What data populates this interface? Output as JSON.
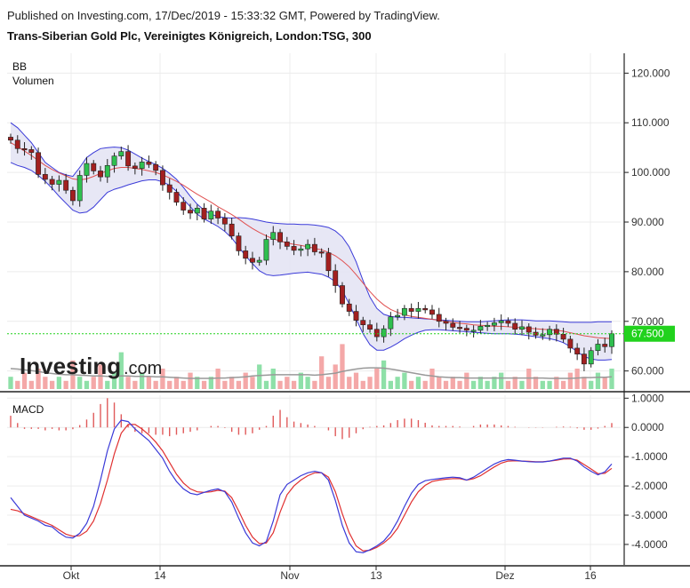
{
  "header": {
    "published": "Published on Investing.com, 17/Dec/2019 - 15:33:32 GMT, Powered by TradingView.",
    "instrument": "Trans-Siberian Gold Plc, Vereinigtes Königreich, London:TSG, 300"
  },
  "logo": {
    "main": "Investing",
    "suffix": ".com"
  },
  "colors": {
    "up": "#2fbf4f",
    "down": "#a32020",
    "bb_band": "#3a3ad8",
    "bb_fill": "#e4e4f4",
    "bb_mid": "#e05050",
    "macd": "#3a3ad8",
    "signal": "#e03030",
    "hist": "#e05a5a",
    "vol_up": "#8ee0a8",
    "vol_down": "#f4a8a8",
    "vol_ma": "#999999",
    "price_tag": "#21d21d"
  },
  "chart_data": [
    {
      "type": "candlestick",
      "pane": "price",
      "indicators": [
        "BB",
        "Volumen"
      ],
      "ylim": [
        56000,
        124000
      ],
      "yticks": [
        "120.000",
        "110.000",
        "100.000",
        "90.000",
        "80.000",
        "70.000",
        "60.000"
      ],
      "ytick_values": [
        120000,
        110000,
        100000,
        90000,
        80000,
        70000,
        60000
      ],
      "xticks": [
        "Okt",
        "14",
        "Nov",
        "13",
        "Dez",
        "16"
      ],
      "last_price": 67500,
      "last_price_label": "67.500",
      "close": [
        106500,
        104800,
        104600,
        104000,
        99600,
        98600,
        97600,
        98400,
        96400,
        94300,
        99400,
        101800,
        100300,
        99100,
        101400,
        103300,
        104200,
        101300,
        100800,
        102100,
        101600,
        100400,
        97500,
        96000,
        94000,
        92400,
        91800,
        92800,
        90600,
        92200,
        90800,
        89600,
        87200,
        84200,
        82700,
        81900,
        82300,
        86500,
        87900,
        86000,
        85100,
        84300,
        84600,
        85500,
        84000,
        83800,
        80200,
        77200,
        73500,
        72000,
        70200,
        69300,
        68400,
        66900,
        68500,
        70900,
        71200,
        72600,
        72000,
        72600,
        72300,
        71400,
        70000,
        69600,
        68800,
        68600,
        68200,
        68200,
        69000,
        69200,
        69700,
        70100,
        69600,
        68400,
        68900,
        67800,
        67200,
        67300,
        68400,
        67400,
        66400,
        64600,
        63400,
        61400,
        64100,
        65400,
        64900,
        67500
      ],
      "bb_upper": [
        110000,
        109000,
        107500,
        106000,
        104000,
        102000,
        101000,
        100000,
        99500,
        99200,
        101000,
        103000,
        104000,
        104800,
        105000,
        105100,
        105000,
        104500,
        103700,
        102900,
        102200,
        101600,
        100800,
        99800,
        98600,
        97000,
        95200,
        93600,
        92400,
        91600,
        91100,
        90900,
        90800,
        90900,
        90800,
        90600,
        90300,
        90000,
        89800,
        89700,
        89600,
        89600,
        89500,
        89500,
        89400,
        89200,
        88900,
        88200,
        87000,
        85000,
        82000,
        78200,
        74900,
        72600,
        71400,
        71000,
        70800,
        70800,
        70700,
        70600,
        70500,
        70400,
        70300,
        70200,
        70100,
        70000,
        69900,
        69900,
        69900,
        70000,
        70100,
        70200,
        70300,
        70300,
        70300,
        70200,
        70100,
        70100,
        70100,
        70000,
        69900,
        69800,
        69800,
        69800,
        69800,
        69900,
        69900,
        69900
      ],
      "bb_mid": [
        106000,
        105200,
        104300,
        103400,
        102400,
        101400,
        100600,
        99900,
        99300,
        98700,
        98500,
        98700,
        99200,
        99800,
        100300,
        100800,
        101000,
        101000,
        100800,
        100600,
        100300,
        100000,
        99500,
        98900,
        98200,
        97400,
        96500,
        95600,
        94800,
        94000,
        93100,
        92300,
        91500,
        90600,
        89600,
        88700,
        87900,
        87200,
        86600,
        86200,
        85800,
        85500,
        85300,
        85000,
        84700,
        84400,
        83900,
        83200,
        82200,
        81000,
        79400,
        77700,
        76000,
        74500,
        73300,
        72400,
        71800,
        71300,
        71000,
        70800,
        70600,
        70400,
        70200,
        70000,
        69800,
        69600,
        69500,
        69300,
        69200,
        69100,
        69000,
        69000,
        68900,
        68800,
        68700,
        68600,
        68500,
        68400,
        68300,
        68200,
        68000,
        67700,
        67400,
        67100,
        66900,
        66700,
        66600,
        66500
      ],
      "bb_lower": [
        102000,
        101400,
        101000,
        100400,
        99400,
        98200,
        96800,
        95200,
        93800,
        92400,
        91800,
        92000,
        93000,
        94500,
        96000,
        96600,
        97000,
        97500,
        97900,
        98300,
        98500,
        98500,
        98100,
        97400,
        96200,
        94600,
        93100,
        91600,
        90600,
        89900,
        89100,
        88100,
        86800,
        85000,
        83200,
        81600,
        80200,
        79400,
        79200,
        79300,
        79500,
        79700,
        79800,
        79900,
        79700,
        79500,
        78900,
        78000,
        76200,
        73500,
        70500,
        67500,
        65300,
        64200,
        64200,
        64800,
        65600,
        66500,
        67200,
        67800,
        68200,
        68300,
        68300,
        68200,
        68100,
        68000,
        67900,
        67800,
        67700,
        67600,
        67500,
        67500,
        67500,
        67400,
        67300,
        67100,
        66900,
        66700,
        66500,
        66200,
        65700,
        64900,
        63900,
        62900,
        62400,
        62200,
        62200,
        62300
      ],
      "volume": [
        3,
        2,
        4,
        2,
        5,
        3,
        2,
        3,
        2,
        7,
        3,
        2,
        3,
        6,
        2,
        4,
        9,
        3,
        2,
        4,
        3,
        2,
        5,
        2,
        3,
        2,
        4,
        3,
        2,
        3,
        5,
        2,
        3,
        2,
        4,
        3,
        6,
        2,
        5,
        2,
        3,
        2,
        4,
        3,
        2,
        8,
        3,
        6,
        11,
        3,
        4,
        2,
        3,
        5,
        7,
        2,
        3,
        4,
        2,
        3,
        2,
        5,
        3,
        2,
        3,
        2,
        4,
        2,
        3,
        2,
        3,
        4,
        2,
        3,
        2,
        5,
        3,
        2,
        2,
        3,
        2,
        4,
        5,
        3,
        2,
        4,
        3,
        5
      ],
      "volume_ma": [
        5,
        4.9,
        4.7,
        4.5,
        4.3,
        4,
        3.8,
        3.6,
        3.5,
        3.5,
        3.4,
        3.3,
        3.2,
        3.2,
        3.1,
        3.1,
        3.2,
        3.2,
        3.1,
        3.1,
        3.1,
        3,
        3,
        2.9,
        2.8,
        2.7,
        2.6,
        2.6,
        2.6,
        2.6,
        2.7,
        2.7,
        2.8,
        2.9,
        3,
        3.2,
        3.3,
        3.4,
        3.5,
        3.5,
        3.5,
        3.5,
        3.5,
        3.5,
        3.4,
        3.5,
        3.7,
        3.9,
        4.3,
        4.6,
        4.9,
        5.1,
        5.2,
        5.2,
        5.1,
        4.9,
        4.6,
        4.3,
        4,
        3.7,
        3.4,
        3.2,
        3,
        2.9,
        2.8,
        2.8,
        2.7,
        2.7,
        2.7,
        2.7,
        2.7,
        2.7,
        2.7,
        2.7,
        2.7,
        2.7,
        2.7,
        2.7,
        2.6,
        2.6,
        2.6,
        2.6,
        2.7,
        2.8,
        2.8,
        2.9,
        2.9,
        3
      ]
    },
    {
      "type": "line",
      "pane": "MACD",
      "label": "MACD",
      "ylim": [
        -4.7,
        1.1
      ],
      "yticks": [
        "1.0000",
        "0.0000",
        "-1.0000",
        "-2.0000",
        "-3.0000",
        "-4.0000"
      ],
      "ytick_values": [
        1,
        0,
        -1,
        -2,
        -3,
        -4
      ],
      "series": [
        {
          "name": "MACD",
          "values": [
            -2.4,
            -2.7,
            -3,
            -3.1,
            -3.2,
            -3.35,
            -3.4,
            -3.6,
            -3.75,
            -3.78,
            -3.62,
            -3.28,
            -2.7,
            -1.8,
            -0.8,
            -0.05,
            0.25,
            0.2,
            -0.05,
            -0.25,
            -0.45,
            -0.75,
            -1.05,
            -1.5,
            -1.85,
            -2.1,
            -2.25,
            -2.3,
            -2.22,
            -2.15,
            -2.1,
            -2.2,
            -2.55,
            -3.1,
            -3.6,
            -3.95,
            -4.05,
            -3.9,
            -3.2,
            -2.3,
            -1.95,
            -1.8,
            -1.65,
            -1.55,
            -1.5,
            -1.55,
            -1.8,
            -2.5,
            -3.35,
            -3.95,
            -4.25,
            -4.28,
            -4.18,
            -4.05,
            -3.88,
            -3.6,
            -3.2,
            -2.7,
            -2.25,
            -1.95,
            -1.82,
            -1.78,
            -1.75,
            -1.72,
            -1.7,
            -1.72,
            -1.8,
            -1.7,
            -1.55,
            -1.4,
            -1.25,
            -1.15,
            -1.1,
            -1.12,
            -1.15,
            -1.17,
            -1.18,
            -1.18,
            -1.15,
            -1.1,
            -1.05,
            -1.05,
            -1.15,
            -1.35,
            -1.5,
            -1.62,
            -1.52,
            -1.25
          ]
        },
        {
          "name": "Signal",
          "values": [
            -2.8,
            -2.85,
            -2.95,
            -3.05,
            -3.15,
            -3.25,
            -3.35,
            -3.5,
            -3.65,
            -3.72,
            -3.7,
            -3.55,
            -3.2,
            -2.6,
            -1.8,
            -0.9,
            -0.2,
            0.1,
            0.1,
            -0.05,
            -0.25,
            -0.5,
            -0.8,
            -1.2,
            -1.6,
            -1.9,
            -2.1,
            -2.2,
            -2.22,
            -2.2,
            -2.15,
            -2.18,
            -2.4,
            -2.85,
            -3.35,
            -3.75,
            -3.97,
            -3.95,
            -3.6,
            -2.9,
            -2.3,
            -2,
            -1.8,
            -1.65,
            -1.55,
            -1.55,
            -1.7,
            -2.2,
            -2.95,
            -3.6,
            -4.05,
            -4.22,
            -4.2,
            -4.1,
            -3.95,
            -3.75,
            -3.45,
            -3,
            -2.55,
            -2.2,
            -1.98,
            -1.85,
            -1.8,
            -1.77,
            -1.75,
            -1.75,
            -1.8,
            -1.75,
            -1.65,
            -1.5,
            -1.35,
            -1.22,
            -1.15,
            -1.14,
            -1.15,
            -1.16,
            -1.17,
            -1.17,
            -1.15,
            -1.12,
            -1.08,
            -1.07,
            -1.12,
            -1.27,
            -1.42,
            -1.58,
            -1.57,
            -1.4
          ]
        }
      ],
      "histogram": [
        0.4,
        0.15,
        -0.05,
        -0.05,
        -0.05,
        -0.1,
        -0.05,
        -0.1,
        -0.1,
        -0.06,
        0.08,
        0.27,
        0.5,
        0.8,
        1,
        0.85,
        0.45,
        0.1,
        -0.15,
        -0.2,
        -0.2,
        -0.25,
        -0.25,
        -0.3,
        -0.25,
        -0.2,
        -0.15,
        -0.1,
        0,
        0.05,
        0.05,
        -0.02,
        -0.15,
        -0.25,
        -0.25,
        -0.2,
        -0.08,
        0.05,
        0.4,
        0.6,
        0.35,
        0.2,
        0.15,
        0.1,
        0.05,
        0,
        -0.1,
        -0.3,
        -0.4,
        -0.35,
        -0.2,
        -0.06,
        0.02,
        0.05,
        0.07,
        0.15,
        0.25,
        0.3,
        0.3,
        0.25,
        0.16,
        0.07,
        0.05,
        0.05,
        0.05,
        0.03,
        0,
        0.05,
        0.1,
        0.1,
        0.1,
        0.07,
        0.05,
        0.02,
        0,
        -0.01,
        -0.01,
        -0.01,
        0,
        0.02,
        0.03,
        0.02,
        -0.03,
        -0.08,
        -0.08,
        -0.04,
        0.05,
        0.15
      ]
    }
  ]
}
